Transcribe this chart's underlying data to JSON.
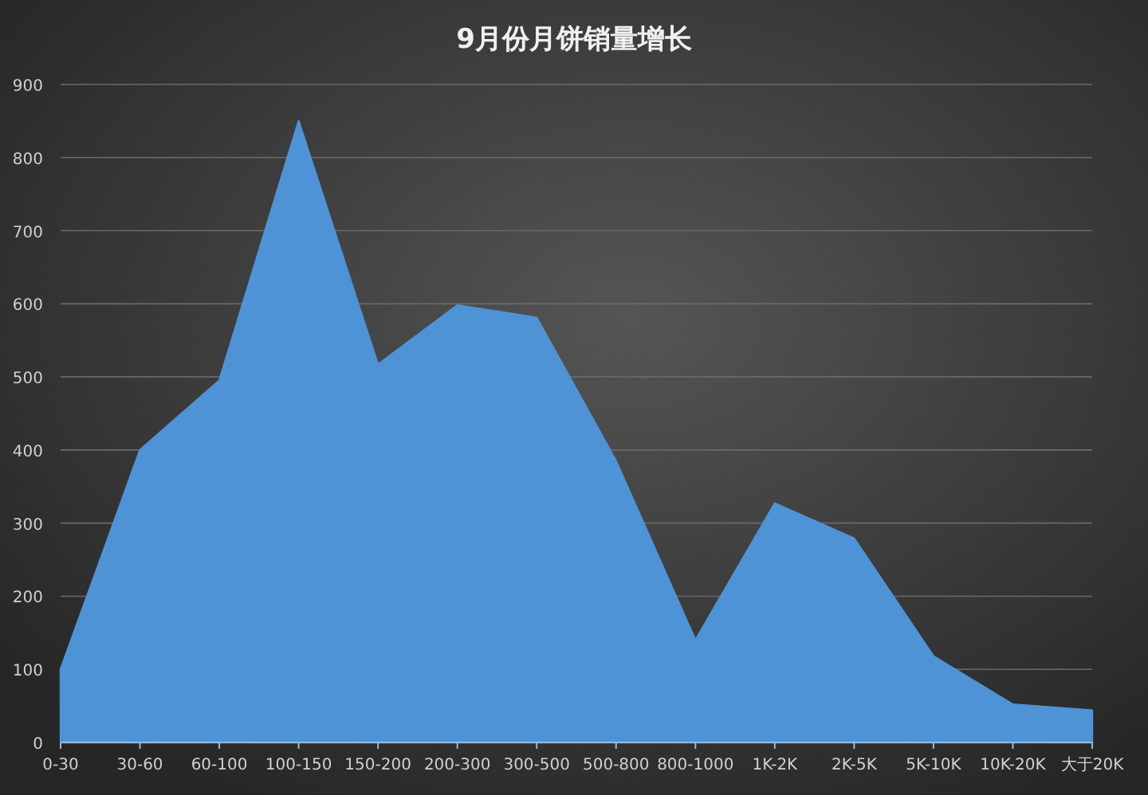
{
  "chart_data": {
    "type": "area",
    "title": "9月份月饼销量增长",
    "categories": [
      "0-30",
      "30-60",
      "60-100",
      "100-150",
      "150-200",
      "200-300",
      "300-500",
      "500-800",
      "800-1000",
      "1K-2K",
      "2K-5K",
      "5K-10K",
      "10K-20K",
      "大于20K"
    ],
    "series": [
      {
        "color": "#4d93d6",
        "values": [
          100,
          400,
          495,
          850,
          517,
          598,
          581,
          385,
          140,
          327,
          279,
          118,
          52,
          44
        ]
      }
    ],
    "ylim": [
      0,
      900
    ],
    "yticks": [
      0,
      100,
      200,
      300,
      400,
      500,
      600,
      700,
      800,
      900
    ],
    "grid": "y"
  }
}
